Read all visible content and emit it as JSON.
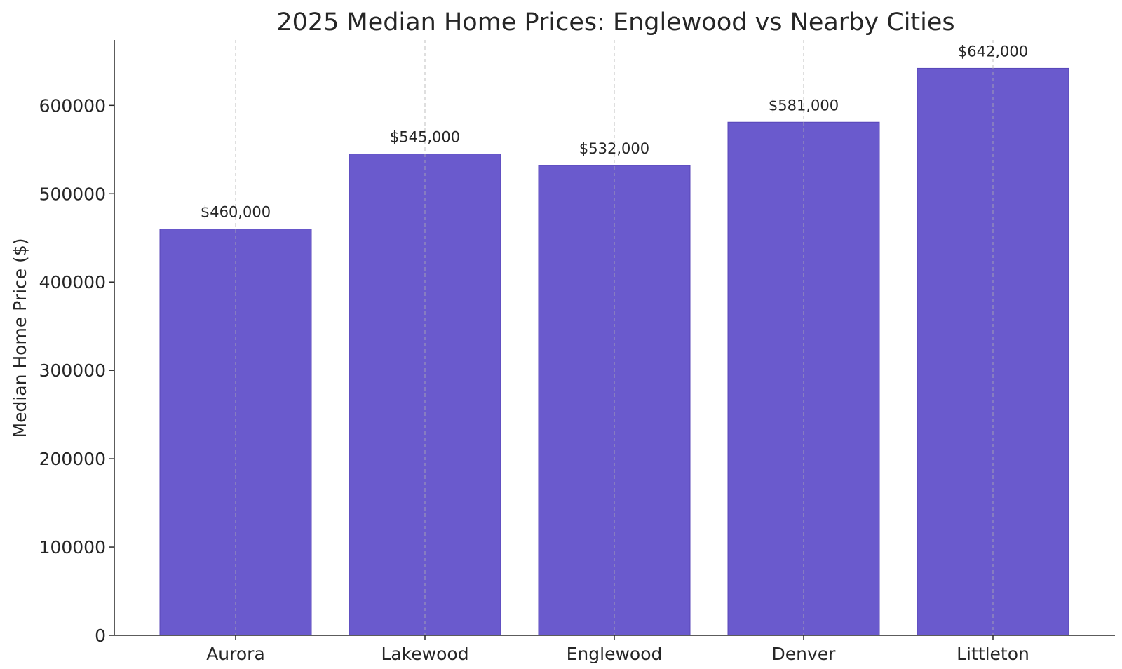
{
  "chart_data": {
    "type": "bar",
    "title": "2025 Median Home Prices: Englewood vs Nearby Cities",
    "xlabel": "",
    "ylabel": "Median Home Price ($)",
    "categories": [
      "Aurora",
      "Lakewood",
      "Englewood",
      "Denver",
      "Littleton"
    ],
    "values": [
      460000,
      545000,
      532000,
      581000,
      642000
    ],
    "data_labels": [
      "$460,000",
      "$545,000",
      "$532,000",
      "$581,000",
      "$642,000"
    ],
    "ylim": [
      0,
      674100
    ],
    "yticks": [
      0,
      100000,
      200000,
      300000,
      400000,
      500000,
      600000
    ],
    "grid": "x-dashed",
    "bar_color": "#6a5acd"
  }
}
